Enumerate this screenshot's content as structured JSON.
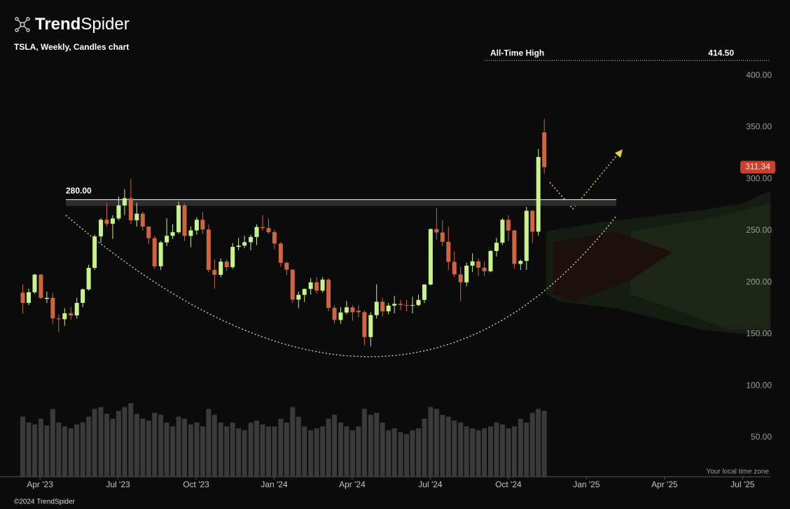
{
  "header": {
    "logo": [
      "Trend",
      "Spider"
    ],
    "subtitle": "TSLA, Weekly, Candles chart"
  },
  "chart_data": {
    "type": "candlestick",
    "x": [
      2023.195,
      2023.214,
      2023.233,
      2023.253,
      2023.272,
      2023.291,
      2023.31,
      2023.329,
      2023.349,
      2023.368,
      2023.387,
      2023.406,
      2023.425,
      2023.445,
      2023.464,
      2023.483,
      2023.502,
      2023.521,
      2023.541,
      2023.56,
      2023.579,
      2023.598,
      2023.617,
      2023.637,
      2023.656,
      2023.675,
      2023.694,
      2023.713,
      2023.733,
      2023.752,
      2023.771,
      2023.79,
      2023.809,
      2023.829,
      2023.848,
      2023.867,
      2023.886,
      2023.905,
      2023.925,
      2023.944,
      2023.963,
      2023.982,
      2024.001,
      2024.021,
      2024.04,
      2024.059,
      2024.078,
      2024.097,
      2024.117,
      2024.136,
      2024.155,
      2024.174,
      2024.193,
      2024.213,
      2024.232,
      2024.251,
      2024.27,
      2024.289,
      2024.309,
      2024.328,
      2024.347,
      2024.366,
      2024.385,
      2024.405,
      2024.424,
      2024.443,
      2024.462,
      2024.481,
      2024.501,
      2024.52,
      2024.539,
      2024.558,
      2024.577,
      2024.597,
      2024.616,
      2024.635,
      2024.654,
      2024.673,
      2024.693,
      2024.712,
      2024.731,
      2024.75,
      2024.769,
      2024.789,
      2024.808,
      2024.827,
      2024.846,
      2024.865
    ],
    "open": [
      190,
      180.1,
      190.4,
      207.5,
      184,
      185,
      165.1,
      164.3,
      170.1,
      168,
      180.1,
      193.2,
      214,
      244.4,
      260.5,
      256.6,
      261.8,
      274.4,
      281.4,
      260,
      266.4,
      253.9,
      242.7,
      215.5,
      238.6,
      245,
      248.5,
      274.4,
      244.9,
      250.2,
      260.5,
      251.1,
      212,
      207.3,
      220,
      214.7,
      234.3,
      235.5,
      238.8,
      243.8,
      253.5,
      252.5,
      248.5,
      237.5,
      218.9,
      212.2,
      183.3,
      187.9,
      193.6,
      200,
      192,
      202.6,
      175.3,
      163.6,
      170.8,
      175.8,
      172.5,
      171.1,
      147.1,
      168.3,
      181.2,
      171.9,
      177.5,
      179.2,
      178.1,
      177.5,
      178,
      183,
      197.9,
      251.5,
      248.2,
      239.2,
      219.8,
      207.7,
      200,
      216.1,
      220.3,
      214.1,
      210.7,
      230.3,
      238.3,
      260.5,
      250.1,
      217.8,
      220.7,
      269.2,
      249,
      345
    ],
    "high": [
      198,
      194,
      208,
      208,
      191,
      190,
      169,
      175,
      176,
      185,
      194,
      217,
      246,
      262,
      277,
      265,
      283,
      290,
      300,
      277,
      268,
      254,
      245,
      240,
      262,
      256,
      278,
      276,
      254,
      263,
      268,
      256,
      222,
      223,
      222,
      238,
      243,
      245,
      246,
      256,
      265,
      262,
      251,
      239,
      220,
      213,
      191,
      194,
      204,
      205,
      205,
      204,
      178,
      176,
      182,
      178,
      178,
      173,
      171,
      198,
      185,
      180,
      187,
      183,
      183,
      186,
      188,
      198,
      252,
      272,
      260,
      254,
      230,
      215,
      219,
      228,
      223,
      220,
      231,
      243,
      262,
      265,
      251,
      222,
      273,
      270,
      329,
      358
    ],
    "low": [
      170,
      178,
      189,
      184,
      180,
      160,
      152,
      158,
      164,
      165,
      176,
      192,
      212,
      238,
      254,
      242,
      260,
      265,
      256,
      254,
      250,
      237,
      213,
      212,
      235,
      242,
      247,
      240,
      234,
      246,
      247,
      210,
      194,
      205,
      211,
      213,
      231,
      233,
      231,
      236,
      250,
      247,
      232,
      215,
      207,
      180,
      175,
      181,
      188,
      189,
      190,
      172,
      160,
      160,
      169,
      163,
      166,
      139,
      138,
      165,
      167,
      169,
      170,
      173,
      172,
      170,
      177,
      180,
      197,
      241,
      235,
      212,
      205,
      182,
      196,
      210,
      206,
      206,
      210,
      225,
      236,
      240,
      213,
      212,
      212,
      238,
      245,
      305
    ],
    "close": [
      180.1,
      190.4,
      207.5,
      185,
      185,
      165.1,
      164.3,
      170.1,
      168,
      180.1,
      193.2,
      214,
      244.4,
      260.5,
      256.6,
      261.8,
      274.4,
      281.4,
      260,
      266.4,
      253.9,
      242.7,
      215.5,
      238.6,
      245,
      248.5,
      274.4,
      244.9,
      250.2,
      260.5,
      251.1,
      212,
      207.3,
      220,
      214.7,
      234.3,
      235.5,
      238.8,
      243.8,
      253.5,
      252.5,
      248.5,
      237.5,
      218.9,
      212.2,
      183.3,
      187.9,
      193.6,
      200,
      192,
      202.6,
      175.3,
      163.6,
      170.8,
      175.8,
      171.1,
      171.1,
      147.1,
      168.3,
      181.2,
      171.9,
      177.5,
      179.2,
      178.1,
      177.5,
      178,
      183,
      197.9,
      251.5,
      248.2,
      239.2,
      219.8,
      207.7,
      200,
      216.1,
      220.3,
      214.1,
      210.7,
      230.3,
      238.3,
      260.5,
      250.1,
      217.8,
      220.7,
      269.2,
      249,
      321.2,
      311.34
    ],
    "volume": [
      620,
      560,
      540,
      600,
      530,
      700,
      560,
      520,
      500,
      540,
      560,
      620,
      700,
      720,
      650,
      600,
      680,
      720,
      760,
      650,
      600,
      580,
      660,
      640,
      560,
      520,
      620,
      600,
      540,
      560,
      520,
      700,
      640,
      560,
      520,
      560,
      500,
      480,
      560,
      580,
      540,
      520,
      520,
      600,
      560,
      720,
      620,
      520,
      480,
      500,
      520,
      600,
      640,
      560,
      520,
      480,
      520,
      700,
      640,
      660,
      560,
      480,
      500,
      460,
      440,
      480,
      500,
      600,
      720,
      700,
      640,
      620,
      580,
      560,
      520,
      500,
      480,
      500,
      520,
      560,
      540,
      500,
      520,
      600,
      560,
      660,
      700,
      680
    ],
    "up_color": "#c8f28c",
    "down_color": "#d0643f",
    "volume_color": "#3a3a3a",
    "ylim": [
      12,
      473
    ],
    "yticks": [
      {
        "value": 50,
        "label": "50.00"
      },
      {
        "value": 100,
        "label": "100.00"
      },
      {
        "value": 150,
        "label": "150.00"
      },
      {
        "value": 200,
        "label": "200.00"
      },
      {
        "value": 250,
        "label": "250.00"
      },
      {
        "value": 300,
        "label": "300.00"
      },
      {
        "value": 350,
        "label": "350.00"
      },
      {
        "value": 400,
        "label": "400.00"
      }
    ],
    "xlim": [
      2023.122,
      2025.589
    ],
    "xticks": [
      {
        "value": 2023.25,
        "label": "Apr '23"
      },
      {
        "value": 2023.5,
        "label": "Jul '23"
      },
      {
        "value": 2023.75,
        "label": "Oct '23"
      },
      {
        "value": 2024.0,
        "label": "Jan '24"
      },
      {
        "value": 2024.25,
        "label": "Apr '24"
      },
      {
        "value": 2024.5,
        "label": "Jul '24"
      },
      {
        "value": 2024.75,
        "label": "Oct '24"
      },
      {
        "value": 2025.0,
        "label": "Jan '25"
      },
      {
        "value": 2025.25,
        "label": "Apr '25"
      },
      {
        "value": 2025.5,
        "label": "Jul '25"
      }
    ],
    "grid": false,
    "annotations": [
      {
        "text": "All-Time High",
        "value": 414.5,
        "value_label": "414.50"
      },
      {
        "value": 280,
        "value_label": "280.00"
      }
    ],
    "last_price_label": "311.34"
  },
  "footer": {
    "timezone": "Your local time zone",
    "copyright": "©2024 TrendSpider"
  }
}
